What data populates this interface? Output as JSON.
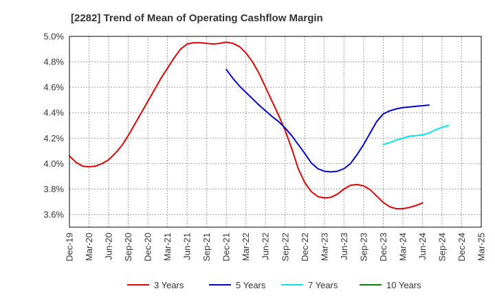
{
  "chart_data": {
    "type": "line",
    "title": "[2282]  Trend of Mean of Operating Cashflow Margin",
    "xlabel": "",
    "ylabel": "",
    "ylim": [
      3.5,
      5.0
    ],
    "y_ticks": [
      "3.6%",
      "3.8%",
      "4.0%",
      "4.2%",
      "4.4%",
      "4.6%",
      "4.8%",
      "5.0%"
    ],
    "y_tick_values": [
      3.6,
      3.8,
      4.0,
      4.2,
      4.4,
      4.6,
      4.8,
      5.0
    ],
    "x_ticks": [
      "Dec-19",
      "Mar-20",
      "Jun-20",
      "Sep-20",
      "Dec-20",
      "Mar-21",
      "Jun-21",
      "Sep-21",
      "Dec-21",
      "Mar-22",
      "Jun-22",
      "Sep-22",
      "Dec-22",
      "Mar-23",
      "Jun-23",
      "Sep-23",
      "Dec-23",
      "Mar-24",
      "Jun-24",
      "Sep-24",
      "Dec-24",
      "Mar-25"
    ],
    "grid": true,
    "legend_position": "bottom",
    "series": [
      {
        "name": "3 Years",
        "color": "#dd0000",
        "start_month": 0,
        "values": [
          4.06,
          4.01,
          3.98,
          3.975,
          3.98,
          4.0,
          4.03,
          4.08,
          4.14,
          4.22,
          4.31,
          4.4,
          4.49,
          4.58,
          4.67,
          4.75,
          4.83,
          4.9,
          4.94,
          4.95,
          4.95,
          4.945,
          4.94,
          4.945,
          4.955,
          4.945,
          4.92,
          4.87,
          4.8,
          4.71,
          4.6,
          4.49,
          4.38,
          4.26,
          4.12,
          3.96,
          3.85,
          3.78,
          3.74,
          3.73,
          3.735,
          3.76,
          3.8,
          3.83,
          3.835,
          3.825,
          3.795,
          3.745,
          3.695,
          3.66,
          3.645,
          3.645,
          3.655,
          3.67,
          3.69
        ]
      },
      {
        "name": "5 Years",
        "color": "#0000cc",
        "start_month": 24,
        "values": [
          4.74,
          4.67,
          4.61,
          4.56,
          4.51,
          4.46,
          4.415,
          4.37,
          4.33,
          4.28,
          4.22,
          4.15,
          4.08,
          4.005,
          3.96,
          3.94,
          3.935,
          3.94,
          3.96,
          4.0,
          4.07,
          4.15,
          4.24,
          4.33,
          4.39,
          4.415,
          4.43,
          4.44,
          4.445,
          4.45,
          4.455,
          4.46
        ]
      },
      {
        "name": "7 Years",
        "color": "#00e5e5",
        "start_month": 48,
        "values": [
          4.15,
          4.165,
          4.185,
          4.2,
          4.215,
          4.22,
          4.225,
          4.24,
          4.265,
          4.285,
          4.3
        ]
      },
      {
        "name": "10 Years",
        "color": "#008000",
        "start_month": 60,
        "values": []
      }
    ]
  }
}
